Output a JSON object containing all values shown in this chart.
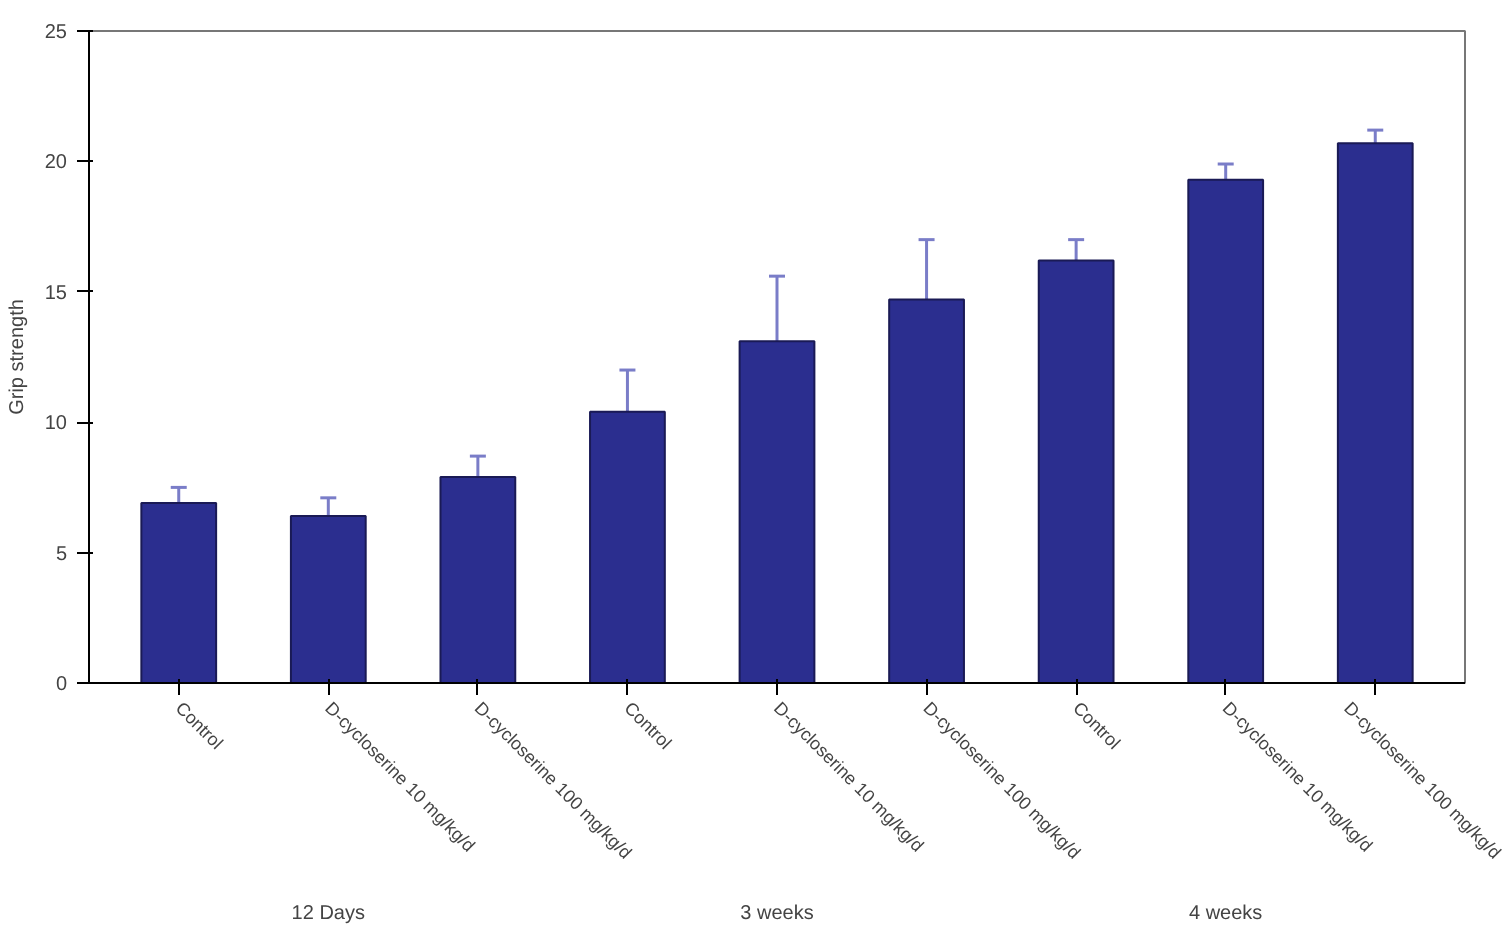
{
  "chart_data": {
    "type": "bar",
    "ylabel": "Grip strength",
    "categories": [
      "Control",
      "D-cycloserine 10 mg/kg/d",
      "D-cycloserine 100 mg/kg/d",
      "Control",
      "D-cycloserine 10 mg/kg/d",
      "D-cycloserine 100 mg/kg/d",
      "Control",
      "D-cycloserine 10 mg/kg/d",
      "D-cycloserine 100 mg/kg/d"
    ],
    "values": [
      6.9,
      6.4,
      7.9,
      10.4,
      13.1,
      14.7,
      16.2,
      19.3,
      20.7
    ],
    "errors": [
      [
        6.9,
        7.5
      ],
      [
        6.4,
        7.1
      ],
      [
        7.9,
        8.7
      ],
      [
        10.4,
        12.0
      ],
      [
        13.1,
        15.6
      ],
      [
        14.7,
        17.0
      ],
      [
        16.2,
        17.0
      ],
      [
        19.3,
        19.9
      ],
      [
        20.7,
        21.2
      ]
    ],
    "color": "#2b2e8f",
    "ylim": [
      0,
      25
    ],
    "yticks": [
      0,
      5,
      10,
      15,
      20,
      25
    ],
    "grid": false,
    "annotations": [
      "12 Days",
      "3 weeks",
      "4 weeks"
    ]
  }
}
